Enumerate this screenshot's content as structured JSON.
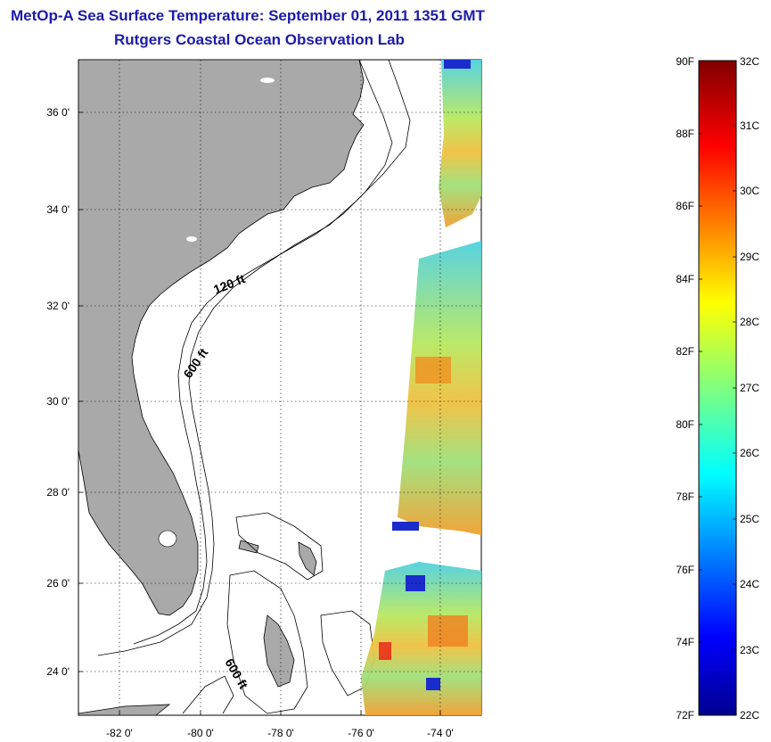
{
  "title": "MetOp-A Sea Surface Temperature:  September 01, 2011 1351 GMT",
  "subtitle": "Rutgers Coastal Ocean Observation Lab",
  "map": {
    "y_ticks": [
      "36 0'",
      "34 0'",
      "32 0'",
      "30 0'",
      "28 0'",
      "26 0'",
      "24 0'"
    ],
    "x_ticks": [
      "-82 0'",
      "-80 0'",
      "-78 0'",
      "-76 0'",
      "-74 0'"
    ],
    "contour_labels": [
      "120 ft",
      "600 ft",
      "600 ft"
    ],
    "colors": {
      "land": "#a9a9a9",
      "ocean": "#ffffff",
      "grid": "#000000"
    }
  },
  "colorbar": {
    "fahrenheit_labels": [
      "90F",
      "88F",
      "86F",
      "84F",
      "82F",
      "80F",
      "78F",
      "76F",
      "74F",
      "72F"
    ],
    "celsius_labels": [
      "32C",
      "31C",
      "30C",
      "29C",
      "28C",
      "27C",
      "26C",
      "25C",
      "24C",
      "23C",
      "22C"
    ],
    "colormap": "jet"
  }
}
